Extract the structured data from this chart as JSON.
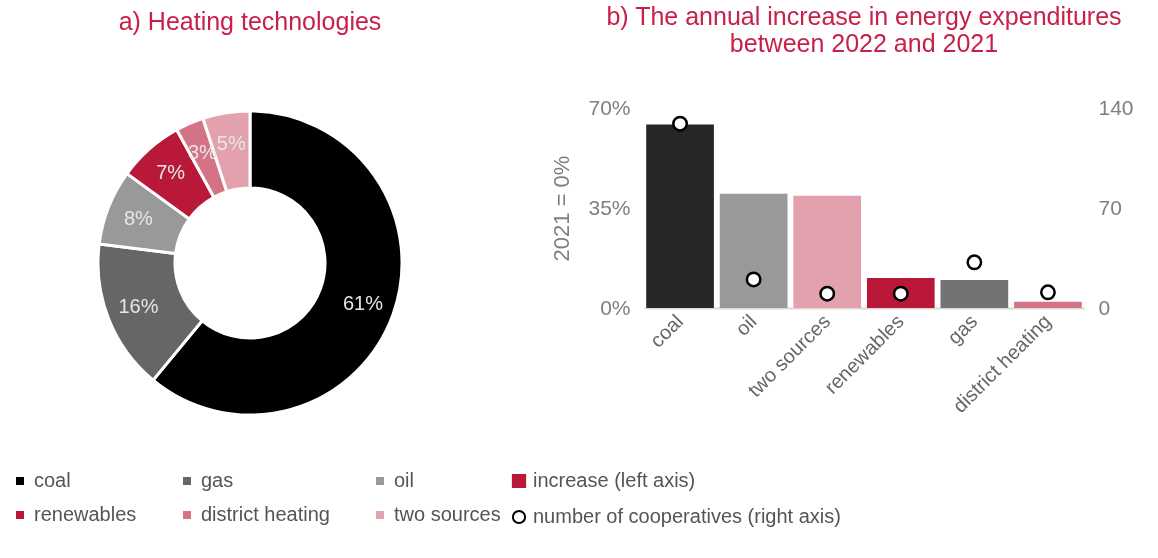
{
  "chart_data": [
    {
      "type": "donut",
      "title": "a) Heating technologies",
      "categories": [
        "coal",
        "gas",
        "oil",
        "renewables",
        "district heating",
        "two sources"
      ],
      "values": [
        61,
        16,
        8,
        7,
        3,
        5
      ],
      "colors": [
        "#000000",
        "#666666",
        "#999999",
        "#b91838",
        "#d47385",
        "#e3a1ae"
      ],
      "value_labels": [
        "61%",
        "16%",
        "8%",
        "7%",
        "3%",
        "5%"
      ],
      "legend": "bottom"
    },
    {
      "type": "bar",
      "title": "b) The annual increase in energy expenditures between 2022 and 2021",
      "ylabel": "2021 = 0%",
      "categories": [
        "coal",
        "oil",
        "two sources",
        "renewables",
        "gas",
        "district heating"
      ],
      "series": [
        {
          "name": "increase (left axis)",
          "type": "bar",
          "color": "#b91838",
          "colors": [
            "#262626",
            "#999999",
            "#e3a1ae",
            "#b91838",
            "#737373",
            "#d47385"
          ],
          "values": [
            64.2,
            40,
            39.3,
            10.5,
            9.8,
            2.2
          ]
        },
        {
          "name": "number of cooperatives (right axis)",
          "type": "scatter",
          "axis": "y2",
          "color": "#000000",
          "values": [
            129,
            20,
            10,
            10,
            32,
            11
          ]
        }
      ],
      "ylim": [
        0,
        70
      ],
      "yticks": [
        {
          "value": 0,
          "label": "0%"
        },
        {
          "value": 35,
          "label": "35%"
        },
        {
          "value": 70,
          "label": "70%"
        }
      ],
      "y2lim": [
        0,
        140
      ],
      "y2ticks": [
        0,
        70,
        140
      ],
      "marker": "circle",
      "legend": "bottom"
    }
  ]
}
